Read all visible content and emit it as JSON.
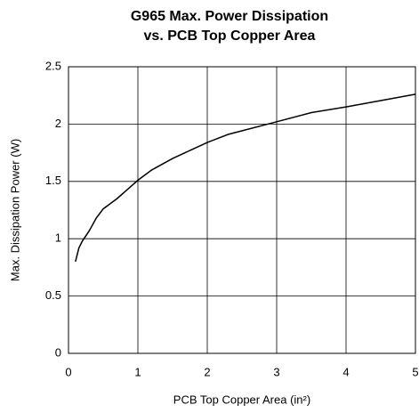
{
  "chart_data": {
    "type": "line",
    "title": [
      "G965 Max. Power Dissipation",
      "vs. PCB Top Copper Area"
    ],
    "x_label": "PCB Top Copper Area (in²)",
    "y_label": "Max. Dissipation Power (W)",
    "x": [
      0.1,
      0.15,
      0.2,
      0.3,
      0.4,
      0.5,
      0.7,
      0.85,
      1,
      1.2,
      1.5,
      2,
      2.3,
      3,
      3.5,
      4,
      5
    ],
    "series": [
      {
        "name": "G965",
        "color": "#000000",
        "values": [
          0.8,
          0.92,
          0.98,
          1.07,
          1.18,
          1.26,
          1.35,
          1.43,
          1.51,
          1.6,
          1.7,
          1.84,
          1.91,
          2.02,
          2.1,
          2.15,
          2.26
        ]
      }
    ],
    "xlim": [
      0,
      5
    ],
    "xticks": [
      0,
      1,
      2,
      3,
      4,
      5
    ],
    "ylim": [
      0,
      2.5
    ],
    "yticks": [
      0,
      0.5,
      1,
      1.5,
      2,
      2.5
    ],
    "grid": true
  }
}
